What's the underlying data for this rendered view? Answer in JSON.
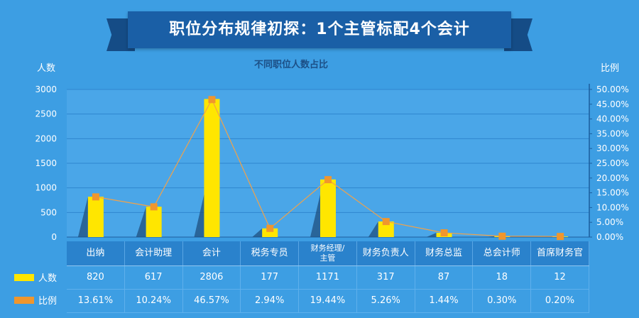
{
  "header": {
    "title": "职位分布规律初探：1个主管标配4个会计",
    "subtitle": "不同职位人数占比"
  },
  "colors": {
    "bar": "#ffe600",
    "line": "#f0962d",
    "background": "#3d9ee3",
    "banner": "#1a5fa6"
  },
  "chart_data": {
    "type": "bar",
    "categories": [
      "出纳",
      "会计助理",
      "会计",
      "税务专员",
      "财务经理/主管",
      "财务负责人",
      "财务总监",
      "总会计师",
      "首席财务官"
    ],
    "series": [
      {
        "name": "人数",
        "type": "bar",
        "axis": "left",
        "values": [
          820,
          617,
          2806,
          177,
          1171,
          317,
          87,
          18,
          12
        ]
      },
      {
        "name": "比例",
        "type": "line",
        "axis": "right",
        "values": [
          13.61,
          10.24,
          46.57,
          2.94,
          19.44,
          5.26,
          1.44,
          0.3,
          0.2
        ]
      }
    ],
    "category_labels": [
      "出纳",
      "会计助理",
      "会计",
      "税务专员",
      "财务经理/\n主管",
      "财务负责人",
      "财务总监",
      "总会计师",
      "首席财务官"
    ],
    "ylabel_left": "人数",
    "ylabel_right": "比例",
    "ylim_left": [
      0,
      3000
    ],
    "ylim_right": [
      0,
      50
    ],
    "left_ticks": [
      "0",
      "500",
      "1000",
      "1500",
      "2000",
      "2500",
      "3000"
    ],
    "right_ticks": [
      "0.00%",
      "5.00%",
      "10.00%",
      "15.00%",
      "20.00%",
      "25.00%",
      "30.00%",
      "35.00%",
      "40.00%",
      "45.00%",
      "50.00%"
    ],
    "table_rows": {
      "count": [
        "820",
        "617",
        "2806",
        "177",
        "1171",
        "317",
        "87",
        "18",
        "12"
      ],
      "ratio": [
        "13.61%",
        "10.24%",
        "46.57%",
        "2.94%",
        "19.44%",
        "5.26%",
        "1.44%",
        "0.30%",
        "0.20%"
      ]
    },
    "legend": {
      "count_label": "人数",
      "ratio_label": "比例"
    },
    "grid": true
  }
}
